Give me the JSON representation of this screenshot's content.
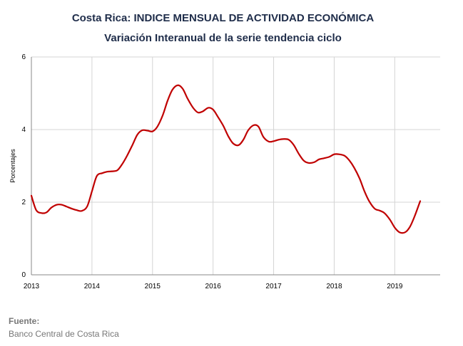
{
  "chart_data": {
    "type": "line",
    "title": "Costa Rica: INDICE MENSUAL DE ACTIVIDAD ECONÓMICA",
    "subtitle": "Variación Interanual de la serie tendencia ciclo",
    "ylabel": "Porcentajes",
    "xlabel": "",
    "xlim": [
      2013.0,
      2019.75
    ],
    "ylim": [
      0,
      6
    ],
    "yticks": [
      "0",
      "2",
      "4",
      "6"
    ],
    "xticks": [
      "2013",
      "2014",
      "2015",
      "2016",
      "2017",
      "2018",
      "2019"
    ],
    "grid": true,
    "series": [
      {
        "color": "#c00000",
        "points": [
          [
            2013.0,
            2.18
          ],
          [
            2013.08,
            1.78
          ],
          [
            2013.17,
            1.7
          ],
          [
            2013.25,
            1.72
          ],
          [
            2013.33,
            1.85
          ],
          [
            2013.42,
            1.93
          ],
          [
            2013.5,
            1.93
          ],
          [
            2013.58,
            1.88
          ],
          [
            2013.67,
            1.82
          ],
          [
            2013.75,
            1.78
          ],
          [
            2013.83,
            1.76
          ],
          [
            2013.92,
            1.88
          ],
          [
            2014.0,
            2.3
          ],
          [
            2014.08,
            2.72
          ],
          [
            2014.17,
            2.8
          ],
          [
            2014.25,
            2.84
          ],
          [
            2014.33,
            2.85
          ],
          [
            2014.42,
            2.88
          ],
          [
            2014.5,
            3.05
          ],
          [
            2014.58,
            3.28
          ],
          [
            2014.67,
            3.58
          ],
          [
            2014.75,
            3.86
          ],
          [
            2014.83,
            3.98
          ],
          [
            2014.92,
            3.97
          ],
          [
            2015.0,
            3.95
          ],
          [
            2015.08,
            4.08
          ],
          [
            2015.17,
            4.4
          ],
          [
            2015.25,
            4.8
          ],
          [
            2015.33,
            5.1
          ],
          [
            2015.42,
            5.22
          ],
          [
            2015.5,
            5.12
          ],
          [
            2015.58,
            4.85
          ],
          [
            2015.67,
            4.6
          ],
          [
            2015.75,
            4.47
          ],
          [
            2015.83,
            4.5
          ],
          [
            2015.92,
            4.6
          ],
          [
            2016.0,
            4.55
          ],
          [
            2016.08,
            4.35
          ],
          [
            2016.17,
            4.1
          ],
          [
            2016.25,
            3.82
          ],
          [
            2016.33,
            3.62
          ],
          [
            2016.42,
            3.57
          ],
          [
            2016.5,
            3.72
          ],
          [
            2016.58,
            3.98
          ],
          [
            2016.67,
            4.12
          ],
          [
            2016.75,
            4.08
          ],
          [
            2016.83,
            3.8
          ],
          [
            2016.92,
            3.67
          ],
          [
            2017.0,
            3.68
          ],
          [
            2017.08,
            3.72
          ],
          [
            2017.17,
            3.74
          ],
          [
            2017.25,
            3.72
          ],
          [
            2017.33,
            3.58
          ],
          [
            2017.42,
            3.32
          ],
          [
            2017.5,
            3.14
          ],
          [
            2017.58,
            3.08
          ],
          [
            2017.67,
            3.1
          ],
          [
            2017.75,
            3.18
          ],
          [
            2017.83,
            3.21
          ],
          [
            2017.92,
            3.25
          ],
          [
            2018.0,
            3.32
          ],
          [
            2018.08,
            3.32
          ],
          [
            2018.17,
            3.28
          ],
          [
            2018.25,
            3.15
          ],
          [
            2018.33,
            2.95
          ],
          [
            2018.42,
            2.65
          ],
          [
            2018.5,
            2.3
          ],
          [
            2018.58,
            2.02
          ],
          [
            2018.67,
            1.82
          ],
          [
            2018.75,
            1.77
          ],
          [
            2018.83,
            1.7
          ],
          [
            2018.92,
            1.52
          ],
          [
            2019.0,
            1.3
          ],
          [
            2019.08,
            1.17
          ],
          [
            2019.17,
            1.17
          ],
          [
            2019.25,
            1.32
          ],
          [
            2019.33,
            1.62
          ],
          [
            2019.42,
            2.03
          ]
        ]
      }
    ]
  },
  "footer": {
    "source_label": "Fuente:",
    "source_text": "Banco Central de Costa Rica"
  }
}
